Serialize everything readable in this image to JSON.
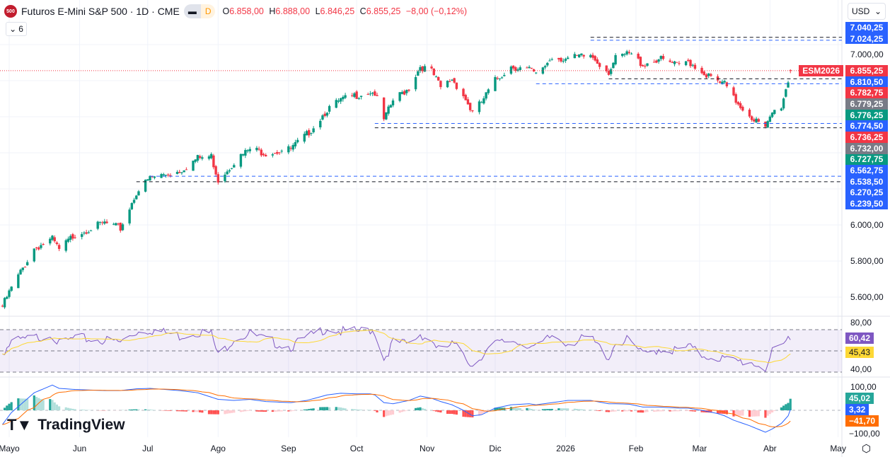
{
  "header": {
    "logo_text": "500",
    "title": "Futuros E-Mini S&P 500 · 1D · CME",
    "interval_badge": "D",
    "ohlc": {
      "o_label": "O",
      "o": "6.858,00",
      "h_label": "H",
      "h": "6.888,00",
      "l_label": "L",
      "l": "6.846,25",
      "c_label": "C",
      "c": "6.855,25",
      "change": "−8,00 (−0,12%)"
    },
    "indicators_collapsed_count": "6"
  },
  "currency": "USD",
  "symbol_tag": "ESM2026",
  "watermark": "TradingView",
  "colors": {
    "up": "#089981",
    "down": "#f23645",
    "blue": "#2962ff",
    "gray": "#787b86",
    "rsi": "#7e57c2",
    "rsi_ma": "#fdd835",
    "macd": "#2962ff",
    "signal": "#ff6d00"
  },
  "price_axis": {
    "labels": [
      "7.000,00",
      "6.000,00",
      "5.800,00",
      "5.600,00"
    ],
    "values": [
      7000,
      6000,
      5800,
      5600
    ],
    "tags_top": [
      {
        "text": "7.040,25",
        "color": "#2962ff"
      },
      {
        "text": "7.024,25",
        "color": "#2962ff"
      }
    ],
    "tags": [
      {
        "text": "6.855,25",
        "color": "#f23645"
      },
      {
        "text": "6.810,50",
        "color": "#2962ff"
      },
      {
        "text": "6.782,75",
        "color": "#f23645"
      },
      {
        "text": "6.779,25",
        "color": "#787b86"
      },
      {
        "text": "6.776,25",
        "color": "#089981"
      },
      {
        "text": "6.774,50",
        "color": "#2962ff"
      },
      {
        "text": "6.736,25",
        "color": "#f23645"
      },
      {
        "text": "6.732,00",
        "color": "#787b86"
      },
      {
        "text": "6.727,75",
        "color": "#089981"
      },
      {
        "text": "6.562,75",
        "color": "#2962ff"
      },
      {
        "text": "6.538,50",
        "color": "#2962ff"
      },
      {
        "text": "6.270,25",
        "color": "#2962ff"
      },
      {
        "text": "6.239,50",
        "color": "#2962ff"
      }
    ]
  },
  "rsi_axis": {
    "labels": [
      "80,00",
      "40,00"
    ],
    "tags": [
      {
        "text": "60,42",
        "color": "#7e57c2"
      },
      {
        "text": "45,43",
        "color": "#fdd835"
      }
    ]
  },
  "macd_axis": {
    "labels": [
      "100,00",
      "−100,00"
    ],
    "tags": [
      {
        "text": "45,02",
        "color": "#26a69a"
      },
      {
        "text": "3,32",
        "color": "#2962ff"
      },
      {
        "text": "−41,70",
        "color": "#ff6d00"
      }
    ]
  },
  "time_axis": [
    {
      "label": "Mayo",
      "date": "2025-05-01"
    },
    {
      "label": "Jun",
      "date": "2025-06-01"
    },
    {
      "label": "Jul",
      "date": "2025-07-01"
    },
    {
      "label": "Ago",
      "date": "2025-08-01"
    },
    {
      "label": "Sep",
      "date": "2025-09-01"
    },
    {
      "label": "Oct",
      "date": "2025-10-01"
    },
    {
      "label": "Nov",
      "date": "2025-11-01"
    },
    {
      "label": "Dic",
      "date": "2025-12-01"
    },
    {
      "label": "2026",
      "date": "2026-01-01"
    },
    {
      "label": "Feb",
      "date": "2026-02-01"
    },
    {
      "label": "Mar",
      "date": "2026-03-01"
    },
    {
      "label": "Abr",
      "date": "2026-04-01"
    },
    {
      "label": "May",
      "date": "2026-05-01"
    }
  ],
  "chart_data": {
    "type": "candlestick",
    "last_price": 6855.25,
    "ylim": [
      5550,
      7060
    ],
    "rsi_bands": [
      70,
      50,
      30
    ],
    "dates": [
      "2025-04-28",
      "2025-05-02",
      "2025-05-12",
      "2025-05-20",
      "2025-05-23",
      "2025-05-30",
      "2025-06-12",
      "2025-06-19",
      "2025-06-26",
      "2025-07-02",
      "2025-07-15",
      "2025-07-23",
      "2025-07-29",
      "2025-08-01",
      "2025-08-08",
      "2025-08-15",
      "2025-08-22",
      "2025-09-02",
      "2025-09-09",
      "2025-09-18",
      "2025-09-24",
      "2025-10-01",
      "2025-10-07",
      "2025-10-09",
      "2025-10-13",
      "2025-10-17",
      "2025-10-24",
      "2025-10-29",
      "2025-11-03",
      "2025-11-07",
      "2025-11-12",
      "2025-11-17",
      "2025-11-21",
      "2025-11-25",
      "2025-12-01",
      "2025-12-08",
      "2025-12-16",
      "2025-12-19",
      "2025-12-26",
      "2026-01-02",
      "2026-01-12",
      "2026-01-20",
      "2026-01-23",
      "2026-01-29",
      "2026-02-04",
      "2026-02-11",
      "2026-02-20",
      "2026-02-24",
      "2026-03-02",
      "2026-03-09",
      "2026-03-12",
      "2026-03-16",
      "2026-03-23",
      "2026-03-30",
      "2026-04-02",
      "2026-04-06",
      "2026-04-09",
      "2026-04-10"
    ],
    "close": [
      5550,
      5650,
      5870,
      5920,
      5860,
      5950,
      6010,
      5980,
      6180,
      6260,
      6300,
      6370,
      6380,
      6250,
      6350,
      6420,
      6400,
      6420,
      6500,
      6640,
      6690,
      6720,
      6740,
      6730,
      6580,
      6690,
      6760,
      6880,
      6850,
      6760,
      6810,
      6720,
      6620,
      6680,
      6800,
      6880,
      6860,
      6830,
      6930,
      6920,
      6940,
      6850,
      6920,
      6950,
      6890,
      6920,
      6880,
      6910,
      6850,
      6790,
      6780,
      6700,
      6610,
      6530,
      6620,
      6660,
      6800,
      6855.25
    ],
    "rsi": [
      48,
      58,
      62,
      66,
      56,
      62,
      60,
      58,
      68,
      70,
      64,
      68,
      66,
      45,
      62,
      66,
      60,
      54,
      62,
      72,
      68,
      68,
      70,
      68,
      42,
      58,
      56,
      66,
      60,
      50,
      56,
      48,
      36,
      46,
      56,
      60,
      56,
      52,
      64,
      58,
      62,
      44,
      58,
      60,
      46,
      52,
      50,
      54,
      46,
      44,
      42,
      40,
      40,
      34,
      48,
      52,
      62,
      60.42
    ],
    "rsi_ma_last": 45.43,
    "macd": [
      -65,
      -10,
      80,
      115,
      100,
      95,
      90,
      90,
      98,
      100,
      90,
      80,
      60,
      50,
      45,
      50,
      40,
      35,
      45,
      70,
      78,
      75,
      75,
      70,
      35,
      30,
      45,
      65,
      55,
      40,
      25,
      0,
      -25,
      -20,
      10,
      25,
      30,
      25,
      35,
      45,
      45,
      30,
      30,
      28,
      15,
      15,
      10,
      10,
      0,
      -15,
      -25,
      -45,
      -70,
      -100,
      -85,
      -60,
      -25,
      3.32
    ],
    "signal_last": -41.7,
    "histogram_last": 45.02,
    "levels": [
      {
        "price": 7040.25,
        "color": "#131722",
        "from": "2026-01-12"
      },
      {
        "price": 7024.25,
        "color": "#2962ff",
        "from": "2026-01-12"
      },
      {
        "price": 6810.5,
        "color": "#131722",
        "from": "2026-01-20"
      },
      {
        "price": 6782.75,
        "color": "#2962ff",
        "from": "2025-12-19"
      },
      {
        "price": 6562.75,
        "color": "#2962ff",
        "from": "2025-10-09"
      },
      {
        "price": 6538.5,
        "color": "#131722",
        "from": "2025-10-09"
      },
      {
        "price": 6270.25,
        "color": "#2962ff",
        "from": "2025-07-02"
      },
      {
        "price": 6239.5,
        "color": "#131722",
        "from": "2025-06-26"
      }
    ]
  }
}
